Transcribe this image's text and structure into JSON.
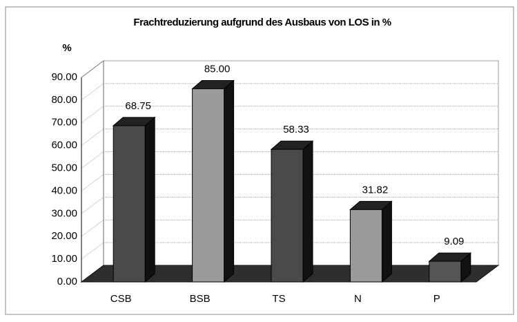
{
  "chart_data": {
    "type": "bar3d",
    "title": "Frachtreduzierung aufgrund des Ausbaus von LOS in %",
    "y_label": "%",
    "categories": [
      "CSB",
      "BSB",
      "TS",
      "N",
      "P"
    ],
    "values": [
      68.75,
      85,
      58.33,
      31.82,
      9.09
    ],
    "value_labels": [
      "68.75",
      "85.00",
      "58.33",
      "31.82",
      "9.09"
    ],
    "colors": [
      "#4a4a4a",
      "#9a9a9a",
      "#4a4a4a",
      "#9a9a9a",
      "#555555"
    ],
    "ylim": [
      0,
      90
    ],
    "yticks": [
      {
        "value": 0,
        "label": "0.00"
      },
      {
        "value": 10,
        "label": "10.00"
      },
      {
        "value": 20,
        "label": "20.00"
      },
      {
        "value": 30,
        "label": "30.00"
      },
      {
        "value": 40,
        "label": "40.00"
      },
      {
        "value": 50,
        "label": "50.00"
      },
      {
        "value": 60,
        "label": "60.00"
      },
      {
        "value": 70,
        "label": "70.00"
      },
      {
        "value": 80,
        "label": "80.00"
      },
      {
        "value": 90,
        "label": "90.00"
      }
    ],
    "grid": true
  }
}
